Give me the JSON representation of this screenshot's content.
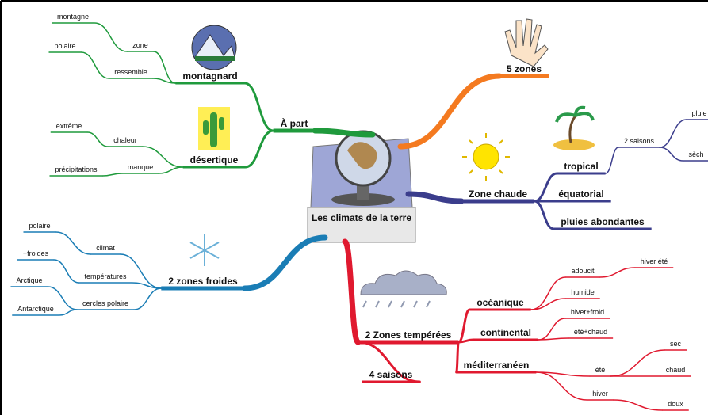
{
  "nodes": [
    "Les climats de la terre",
    "À part",
    "montagnard",
    "zone",
    "montagne",
    "ressemble",
    "polaire",
    "désertique",
    "chaleur",
    "extrême",
    "manque",
    "précipitations",
    "5 zones",
    "Zone chaude",
    "tropical",
    "2 saisons",
    "pluie",
    "sèch",
    "équatorial",
    "pluies abondantes",
    "2 zones froides",
    "climat",
    "polaire",
    "températures",
    "+froides",
    "cercles polaire",
    "Arctique",
    "Antarctique",
    "2 Zones tempérées",
    "océanique",
    "adoucit",
    "hiver été",
    "humide",
    "continental",
    "hiver+froid",
    "été+chaud",
    "méditerranéen",
    "été",
    "sec",
    "chaud",
    "hiver",
    "doux",
    "4 saisons"
  ]
}
